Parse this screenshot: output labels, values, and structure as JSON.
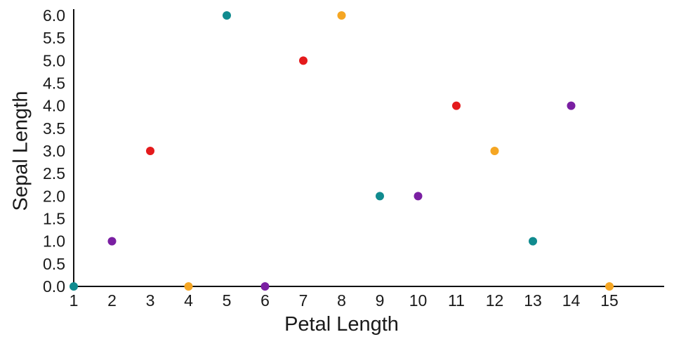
{
  "chart_data": {
    "type": "scatter",
    "title": "",
    "xlabel": "Petal Length",
    "ylabel": "Sepal Length",
    "xlim": [
      1,
      15
    ],
    "ylim": [
      0,
      6
    ],
    "grid": false,
    "legend": false,
    "x_ticks": [
      "1",
      "2",
      "3",
      "4",
      "5",
      "6",
      "7",
      "8",
      "9",
      "10",
      "11",
      "12",
      "13",
      "14",
      "15"
    ],
    "y_ticks": [
      "0.0",
      "0.5",
      "1.0",
      "1.5",
      "2.0",
      "2.5",
      "3.0",
      "3.5",
      "4.0",
      "4.5",
      "5.0",
      "5.5",
      "6.0"
    ],
    "colors": {
      "teal": "#108b8f",
      "purple": "#7a1fa2",
      "red": "#e41a1c",
      "orange": "#f5a623"
    },
    "points": [
      {
        "x": 1,
        "y": 0,
        "color": "teal"
      },
      {
        "x": 2,
        "y": 1,
        "color": "purple"
      },
      {
        "x": 3,
        "y": 3,
        "color": "red"
      },
      {
        "x": 4,
        "y": 0,
        "color": "orange"
      },
      {
        "x": 5,
        "y": 6,
        "color": "teal"
      },
      {
        "x": 6,
        "y": 0,
        "color": "purple"
      },
      {
        "x": 7,
        "y": 5,
        "color": "red"
      },
      {
        "x": 8,
        "y": 6,
        "color": "orange"
      },
      {
        "x": 9,
        "y": 2,
        "color": "teal"
      },
      {
        "x": 10,
        "y": 2,
        "color": "purple"
      },
      {
        "x": 11,
        "y": 4,
        "color": "red"
      },
      {
        "x": 12,
        "y": 3,
        "color": "orange"
      },
      {
        "x": 13,
        "y": 1,
        "color": "teal"
      },
      {
        "x": 14,
        "y": 4,
        "color": "purple"
      },
      {
        "x": 15,
        "y": 0,
        "color": "orange"
      }
    ],
    "axis_color": "#111111",
    "text_color": "#1a1a1a"
  }
}
